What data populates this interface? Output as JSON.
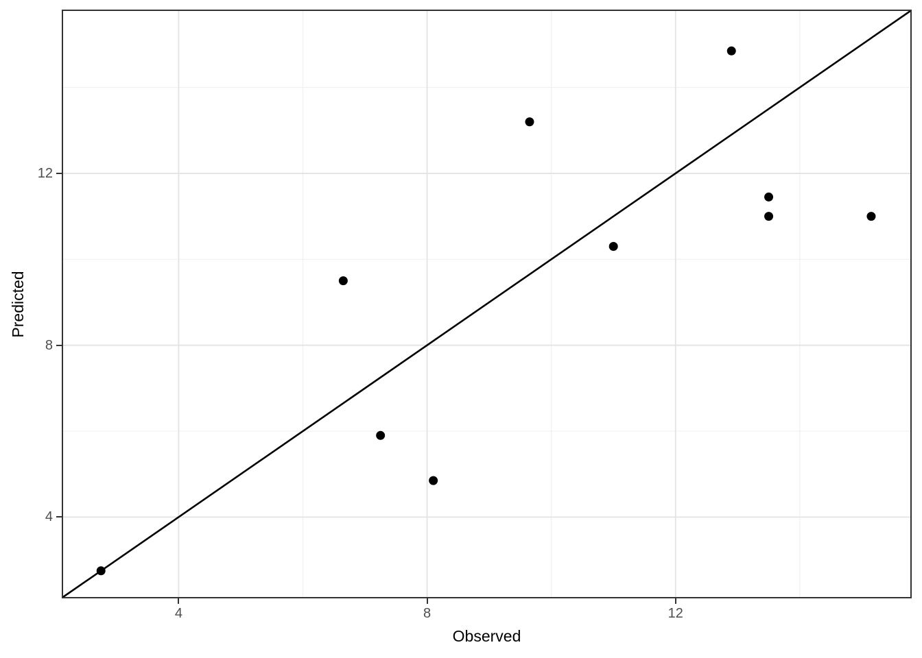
{
  "chart_data": {
    "type": "scatter",
    "title": "",
    "xlabel": "Observed",
    "ylabel": "Predicted",
    "xlim": [
      2.14,
      15.78
    ],
    "ylim": [
      2.14,
      15.78
    ],
    "x_ticks": [
      4,
      8,
      12
    ],
    "x_tick_labels": [
      "4",
      "8",
      "12"
    ],
    "y_ticks": [
      4,
      8,
      12
    ],
    "y_tick_labels": [
      "4",
      "8",
      "12"
    ],
    "minor_x_gridlines": [
      6,
      10,
      14
    ],
    "minor_y_gridlines": [
      6,
      10,
      14
    ],
    "grid": "on",
    "legend": "none",
    "points": [
      {
        "x": 2.75,
        "y": 2.75
      },
      {
        "x": 6.65,
        "y": 9.5
      },
      {
        "x": 7.25,
        "y": 5.9
      },
      {
        "x": 8.1,
        "y": 4.85
      },
      {
        "x": 9.65,
        "y": 13.2
      },
      {
        "x": 11.0,
        "y": 10.3
      },
      {
        "x": 12.9,
        "y": 14.85
      },
      {
        "x": 13.5,
        "y": 11.45
      },
      {
        "x": 13.5,
        "y": 11.0
      },
      {
        "x": 15.15,
        "y": 11.0
      }
    ],
    "reference_line": {
      "type": "identity",
      "slope": 1,
      "intercept": 0
    },
    "point_radius_px": 6.5,
    "colors": {
      "background": "#ffffff",
      "panel_border": "#333333",
      "grid_major": "#e3e3e3",
      "grid_minor": "#f0f0f0",
      "point": "#000000",
      "reference_line": "#000000",
      "tick_label": "#4d4d4d",
      "axis_title": "#000000",
      "tick_mark": "#333333"
    }
  }
}
